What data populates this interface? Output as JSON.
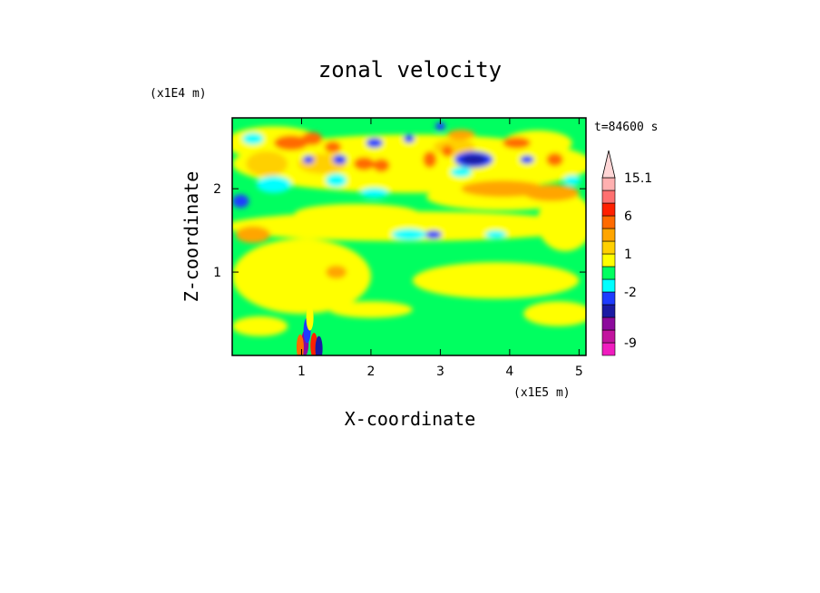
{
  "chart_data": {
    "type": "heatmap",
    "title": "zonal velocity",
    "xlabel": "X-coordinate",
    "ylabel": "Z-coordinate",
    "x_multiplier": "(x1E5 m)",
    "y_multiplier": "(x1E4 m)",
    "time_label": "t=84600 s",
    "xlim": [
      0,
      5.1
    ],
    "ylim": [
      0,
      2.85
    ],
    "xticks": [
      1,
      2,
      3,
      4,
      5
    ],
    "xtick_labels": [
      "1",
      "2",
      "3",
      "4",
      "5"
    ],
    "yticks": [
      1,
      2
    ],
    "ytick_labels": [
      "1",
      "2"
    ],
    "colorbar": {
      "levels": [
        {
          "value": -12,
          "color": "#f01cbf"
        },
        {
          "value": -9,
          "color": "#c2139e"
        },
        {
          "value": -6,
          "color": "#8c0a9c"
        },
        {
          "value": -4,
          "color": "#1a1aa3"
        },
        {
          "value": -3,
          "color": "#1e3cff"
        },
        {
          "value": -2,
          "color": "#00ffff"
        },
        {
          "value": -1,
          "color": "#00ff60"
        },
        {
          "value": 0,
          "color": "#ffff00"
        },
        {
          "value": 1,
          "color": "#ffd000"
        },
        {
          "value": 2,
          "color": "#ffa500"
        },
        {
          "value": 4,
          "color": "#ff6a00"
        },
        {
          "value": 6,
          "color": "#ff2000"
        },
        {
          "value": 9,
          "color": "#ff7070"
        },
        {
          "value": 12,
          "color": "#ffb0b0"
        },
        {
          "value": 15.1,
          "color": "#ffd6d6"
        }
      ],
      "labels": [
        "15.1",
        "6",
        "1",
        "-2",
        "-9"
      ]
    }
  }
}
